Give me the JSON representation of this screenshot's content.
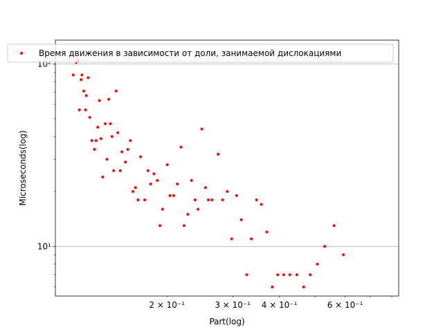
{
  "chart_data": {
    "type": "scatter",
    "title": "",
    "xlabel": "Part(log)",
    "ylabel": "Microseconds(log)",
    "xscale": "log",
    "yscale": "log",
    "xlim": [
      0.1005,
      0.835
    ],
    "ylim": [
      5.35,
      135
    ],
    "grid": "horizontal-major",
    "legend_placement": "top",
    "color": "#ff0000",
    "x_tick_labels": [
      {
        "value": 0.2,
        "label": "2 × 10⁻¹"
      },
      {
        "value": 0.3,
        "label": "3 × 10⁻¹"
      },
      {
        "value": 0.4,
        "label": "4 × 10⁻¹"
      },
      {
        "value": 0.6,
        "label": "6 × 10⁻¹"
      }
    ],
    "x_minor_ticks": [
      0.2,
      0.3,
      0.4,
      0.5,
      0.6,
      0.7,
      0.8
    ],
    "y_tick_labels": [
      {
        "value": 10,
        "label": "10¹"
      },
      {
        "value": 100,
        "label": "10²"
      }
    ],
    "y_minor_ticks": [
      6,
      7,
      8,
      9,
      20,
      30,
      40,
      50,
      60,
      70,
      80,
      90
    ],
    "series": [
      {
        "name": "Время движения в зависимости от доли, занимаемой дислокациями",
        "points": [
          [
            0.1122,
            87
          ],
          [
            0.1143,
            102
          ],
          [
            0.1156,
            104
          ],
          [
            0.1165,
            56
          ],
          [
            0.1178,
            82
          ],
          [
            0.1184,
            87
          ],
          [
            0.1197,
            71
          ],
          [
            0.121,
            56
          ],
          [
            0.1216,
            67
          ],
          [
            0.123,
            84
          ],
          [
            0.1242,
            51
          ],
          [
            0.1259,
            38
          ],
          [
            0.1279,
            34
          ],
          [
            0.1292,
            38
          ],
          [
            0.1305,
            45
          ],
          [
            0.1319,
            63
          ],
          [
            0.1332,
            39
          ],
          [
            0.1346,
            24
          ],
          [
            0.1367,
            47
          ],
          [
            0.1381,
            30
          ],
          [
            0.1396,
            64
          ],
          [
            0.141,
            47
          ],
          [
            0.1425,
            40
          ],
          [
            0.144,
            26
          ],
          [
            0.1462,
            71
          ],
          [
            0.1477,
            42
          ],
          [
            0.15,
            26
          ],
          [
            0.1515,
            33
          ],
          [
            0.1547,
            29
          ],
          [
            0.1571,
            34
          ],
          [
            0.1596,
            38
          ],
          [
            0.1622,
            20
          ],
          [
            0.1647,
            21
          ],
          [
            0.1673,
            18
          ],
          [
            0.1699,
            31
          ],
          [
            0.1743,
            18
          ],
          [
            0.178,
            26
          ],
          [
            0.1808,
            22
          ],
          [
            0.1846,
            25
          ],
          [
            0.1885,
            23
          ],
          [
            0.1915,
            13
          ],
          [
            0.1946,
            16
          ],
          [
            0.2003,
            28
          ],
          [
            0.2037,
            19
          ],
          [
            0.2084,
            19
          ],
          [
            0.2132,
            22
          ],
          [
            0.2181,
            35
          ],
          [
            0.2223,
            13
          ],
          [
            0.2274,
            15
          ],
          [
            0.2327,
            23
          ],
          [
            0.238,
            18
          ],
          [
            0.2423,
            16
          ],
          [
            0.2479,
            44
          ],
          [
            0.2536,
            21
          ],
          [
            0.2582,
            18
          ],
          [
            0.2642,
            18
          ],
          [
            0.2741,
            32
          ],
          [
            0.2818,
            18
          ],
          [
            0.2901,
            20
          ],
          [
            0.2981,
            11
          ],
          [
            0.3074,
            19
          ],
          [
            0.3163,
            14
          ],
          [
            0.3272,
            7
          ],
          [
            0.3365,
            11
          ],
          [
            0.3474,
            18
          ],
          [
            0.358,
            17
          ],
          [
            0.3701,
            12
          ],
          [
            0.3828,
            6
          ],
          [
            0.3959,
            7
          ],
          [
            0.411,
            7
          ],
          [
            0.4267,
            7
          ],
          [
            0.4453,
            7
          ],
          [
            0.4647,
            6
          ],
          [
            0.484,
            7
          ],
          [
            0.5055,
            8
          ],
          [
            0.5288,
            10
          ],
          [
            0.5604,
            13
          ],
          [
            0.5939,
            9
          ]
        ]
      }
    ]
  }
}
